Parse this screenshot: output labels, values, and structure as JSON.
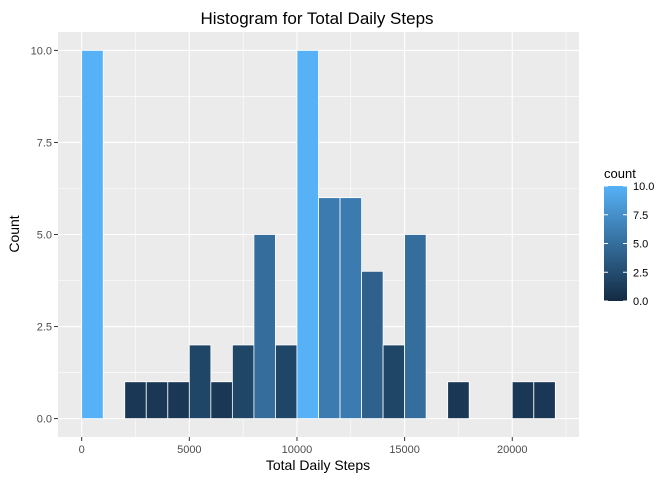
{
  "chart_data": {
    "type": "bar",
    "title": "Histogram for Total Daily Steps",
    "xlabel": "Total Daily Steps",
    "ylabel": "Count",
    "bin_width": 1000,
    "bins": [
      {
        "x0": 0,
        "x1": 1000,
        "count": 10
      },
      {
        "x0": 1000,
        "x1": 2000,
        "count": 0
      },
      {
        "x0": 2000,
        "x1": 3000,
        "count": 1
      },
      {
        "x0": 3000,
        "x1": 4000,
        "count": 1
      },
      {
        "x0": 4000,
        "x1": 5000,
        "count": 1
      },
      {
        "x0": 5000,
        "x1": 6000,
        "count": 2
      },
      {
        "x0": 6000,
        "x1": 7000,
        "count": 1
      },
      {
        "x0": 7000,
        "x1": 8000,
        "count": 2
      },
      {
        "x0": 8000,
        "x1": 9000,
        "count": 5
      },
      {
        "x0": 9000,
        "x1": 10000,
        "count": 2
      },
      {
        "x0": 10000,
        "x1": 11000,
        "count": 10
      },
      {
        "x0": 11000,
        "x1": 12000,
        "count": 6
      },
      {
        "x0": 12000,
        "x1": 13000,
        "count": 6
      },
      {
        "x0": 13000,
        "x1": 14000,
        "count": 4
      },
      {
        "x0": 14000,
        "x1": 15000,
        "count": 2
      },
      {
        "x0": 15000,
        "x1": 16000,
        "count": 5
      },
      {
        "x0": 16000,
        "x1": 17000,
        "count": 0
      },
      {
        "x0": 17000,
        "x1": 18000,
        "count": 1
      },
      {
        "x0": 18000,
        "x1": 19000,
        "count": 0
      },
      {
        "x0": 19000,
        "x1": 20000,
        "count": 0
      },
      {
        "x0": 20000,
        "x1": 21000,
        "count": 1
      },
      {
        "x0": 21000,
        "x1": 22000,
        "count": 1
      }
    ],
    "xlim": [
      -1100,
      23100
    ],
    "ylim": [
      -0.5,
      10.5
    ],
    "x_ticks": [
      0,
      5000,
      10000,
      15000,
      20000
    ],
    "x_tick_labels": [
      "0",
      "5000",
      "10000",
      "15000",
      "20000"
    ],
    "y_ticks": [
      0,
      2.5,
      5,
      7.5,
      10
    ],
    "y_tick_labels": [
      "0.0",
      "2.5",
      "5.0",
      "7.5",
      "10.0"
    ],
    "grid": true,
    "legend": {
      "title": "count",
      "placement": "right",
      "ticks": [
        0,
        2.5,
        5,
        7.5,
        10
      ],
      "tick_labels": [
        "0.0",
        "2.5",
        "5.0",
        "7.5",
        "10.0"
      ],
      "range": [
        0,
        10
      ],
      "color_low": "#132B43",
      "color_high": "#56B1F7"
    },
    "colors": {
      "panel_background": "#EBEBEB",
      "grid": "#FFFFFF",
      "bar_outline": "#FFFFFF"
    }
  }
}
